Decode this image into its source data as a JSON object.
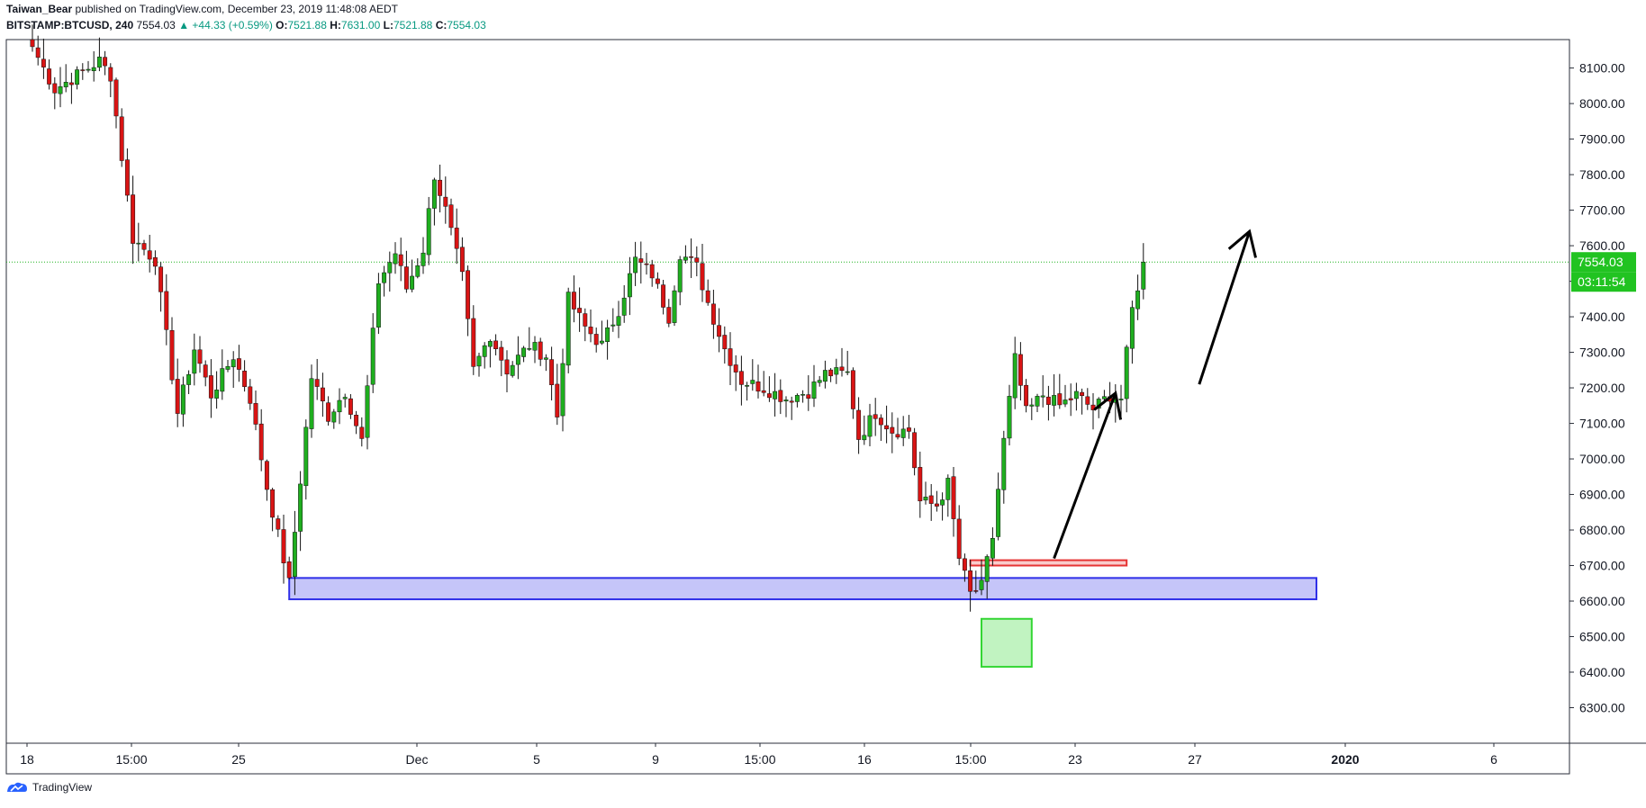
{
  "header": {
    "author": "Taiwan_Bear",
    "published_text": "published on TradingView.com, December 23, 2019 11:48:08 AEDT"
  },
  "symbol_line": {
    "symbol": "BITSTAMP:BTCUSD, 240",
    "last": "7554.03",
    "change": "▲ +44.33 (+0.59%)",
    "open_label": "O:",
    "open": "7521.88",
    "high_label": "H:",
    "high": "7631.00",
    "low_label": "L:",
    "low": "7521.88",
    "close_label": "C:",
    "close": "7554.03"
  },
  "colors": {
    "up": "#1fae1f",
    "down": "#d91414",
    "price_line": "#21b321",
    "price_badge": "#21c321",
    "support_zone": "#2f2fe8",
    "red_zone": "#e63333",
    "green_zone": "#33d633",
    "axis": "#131722"
  },
  "footer": {
    "brand": "TradingView"
  },
  "chart_data": {
    "type": "candlestick",
    "ylim": [
      6200,
      8180
    ],
    "y_ticks": [
      "8100.00",
      "8000.00",
      "7900.00",
      "7800.00",
      "7700.00",
      "7600.00",
      "7500.00",
      "7400.00",
      "7300.00",
      "7200.00",
      "7100.00",
      "7000.00",
      "6900.00",
      "6800.00",
      "6700.00",
      "6600.00",
      "6500.00",
      "6400.00",
      "6300.00"
    ],
    "x_ticks": [
      "18",
      "15:00",
      "25",
      "Dec",
      "5",
      "9",
      "15:00",
      "16",
      "15:00",
      "23",
      "27",
      "2020",
      "6"
    ],
    "last_price_label": "7554.03",
    "countdown_label": "03:11:54",
    "last_price": 7554.03,
    "anchors": [
      [
        0,
        8160
      ],
      [
        4,
        8040
      ],
      [
        8,
        8080
      ],
      [
        12,
        8120
      ],
      [
        14,
        8080
      ],
      [
        18,
        7620
      ],
      [
        22,
        7560
      ],
      [
        26,
        7130
      ],
      [
        29,
        7310
      ],
      [
        32,
        7180
      ],
      [
        36,
        7290
      ],
      [
        39,
        7170
      ],
      [
        42,
        6920
      ],
      [
        46,
        6650
      ],
      [
        50,
        7230
      ],
      [
        53,
        7120
      ],
      [
        56,
        7190
      ],
      [
        59,
        7050
      ],
      [
        62,
        7500
      ],
      [
        65,
        7580
      ],
      [
        67,
        7480
      ],
      [
        70,
        7590
      ],
      [
        72,
        7800
      ],
      [
        74,
        7700
      ],
      [
        77,
        7510
      ],
      [
        79,
        7250
      ],
      [
        82,
        7350
      ],
      [
        85,
        7250
      ],
      [
        89,
        7320
      ],
      [
        92,
        7290
      ],
      [
        94,
        7120
      ],
      [
        96,
        7450
      ],
      [
        99,
        7370
      ],
      [
        102,
        7320
      ],
      [
        105,
        7420
      ],
      [
        108,
        7560
      ],
      [
        111,
        7520
      ],
      [
        114,
        7400
      ],
      [
        116,
        7580
      ],
      [
        119,
        7540
      ],
      [
        121,
        7440
      ],
      [
        124,
        7310
      ],
      [
        127,
        7220
      ],
      [
        131,
        7200
      ],
      [
        135,
        7170
      ],
      [
        139,
        7190
      ],
      [
        142,
        7240
      ],
      [
        146,
        7240
      ],
      [
        148,
        7060
      ],
      [
        151,
        7130
      ],
      [
        154,
        7080
      ],
      [
        157,
        7080
      ],
      [
        159,
        6880
      ],
      [
        162,
        6870
      ],
      [
        164,
        6930
      ],
      [
        166,
        6720
      ],
      [
        168,
        6620
      ],
      [
        170,
        6640
      ],
      [
        172,
        6780
      ],
      [
        174,
        7050
      ],
      [
        176,
        7280
      ],
      [
        178,
        7130
      ],
      [
        181,
        7180
      ],
      [
        184,
        7150
      ],
      [
        187,
        7180
      ],
      [
        190,
        7140
      ],
      [
        193,
        7180
      ],
      [
        195,
        7170
      ],
      [
        197,
        7420
      ],
      [
        199,
        7554
      ]
    ],
    "zones": [
      {
        "name": "blue-support-zone",
        "x_range": [
          46,
          230
        ],
        "y_range": [
          6605,
          6665
        ]
      },
      {
        "name": "red-resistance-zone",
        "x_range": [
          168,
          196
        ],
        "y_range": [
          6700,
          6715
        ]
      },
      {
        "name": "green-wick-zone",
        "x_range": [
          170,
          179
        ],
        "y_range": [
          6415,
          6550
        ]
      }
    ],
    "arrows": [
      {
        "name": "arrow-1",
        "from": [
          183,
          6720
        ],
        "to": [
          194,
          7185
        ]
      },
      {
        "name": "arrow-2",
        "from": [
          209,
          7210
        ],
        "to": [
          218,
          7640
        ]
      }
    ]
  }
}
